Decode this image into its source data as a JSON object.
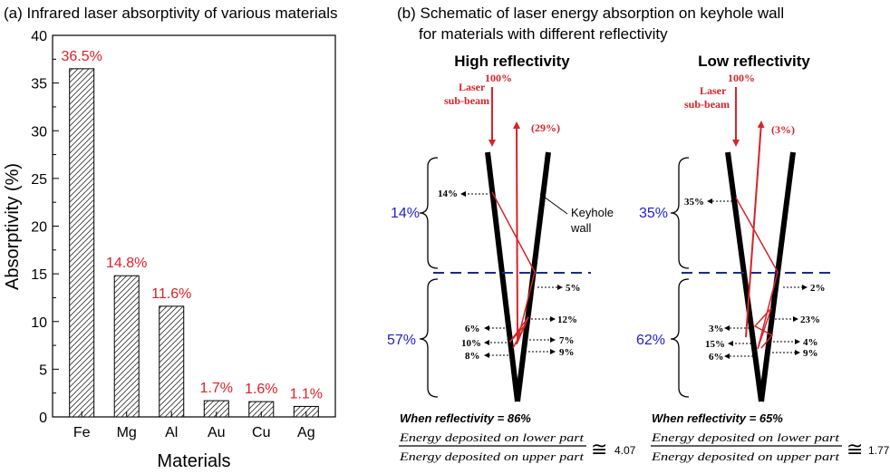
{
  "panel_a": {
    "title": "(a) Infrared laser absorptivity of various materials",
    "xlabel": "Materials",
    "ylabel": "Absorptivity (%)",
    "label_color": "#e0202a"
  },
  "chart_data": {
    "type": "bar",
    "title": "(a) Infrared laser absorptivity of various materials",
    "xlabel": "Materials",
    "ylabel": "Absorptivity (%)",
    "categories": [
      "Fe",
      "Mg",
      "Al",
      "Au",
      "Cu",
      "Ag"
    ],
    "values": [
      36.5,
      14.8,
      11.6,
      1.7,
      1.6,
      1.1
    ],
    "data_labels": [
      "36.5%",
      "14.8%",
      "11.6%",
      "1.7%",
      "1.6%",
      "1.1%"
    ],
    "ylim": [
      0,
      40
    ],
    "yticks": [
      0,
      5,
      10,
      15,
      20,
      25,
      30,
      35,
      40
    ],
    "bar_pattern": "diagonal-hatch",
    "label_color": "#e0202a",
    "grid": false
  },
  "panel_b": {
    "title_line1": "(b) Schematic of laser energy absorption on keyhole wall",
    "title_line2": "for materials with different reflectivity",
    "keyhole_label": "Keyhole",
    "keyhole_label2": "wall",
    "beam_label1": "Laser",
    "beam_label2": "sub-beam",
    "fraction_num": "Energy deposited on lower part",
    "fraction_den": "Energy deposited on upper part",
    "approx_symbol": "≅",
    "colors": {
      "beam": "#d6242a",
      "blue": "#1f1fc8",
      "dash": "#1a2a8a",
      "wall": "#000000"
    },
    "cases": [
      {
        "heading": "High reflectivity",
        "incident": "100%",
        "reflected": "(29%)",
        "upper_total": "14%",
        "upper_values": [
          "14%"
        ],
        "lower_total": "57%",
        "lower_right": [
          "5%",
          "12%",
          "7%",
          "9%"
        ],
        "lower_left": [
          "6%",
          "10%",
          "8%"
        ],
        "reflectivity": "When reflectivity = 86%",
        "ratio": "4.07"
      },
      {
        "heading": "Low reflectivity",
        "incident": "100%",
        "reflected": "(3%)",
        "upper_total": "35%",
        "upper_values": [
          "35%"
        ],
        "lower_total": "62%",
        "lower_right": [
          "2%",
          "23%",
          "4%",
          "9%"
        ],
        "lower_left": [
          "3%",
          "15%",
          "6%"
        ],
        "reflectivity": "When reflectivity = 65%",
        "ratio": "1.77"
      }
    ]
  }
}
